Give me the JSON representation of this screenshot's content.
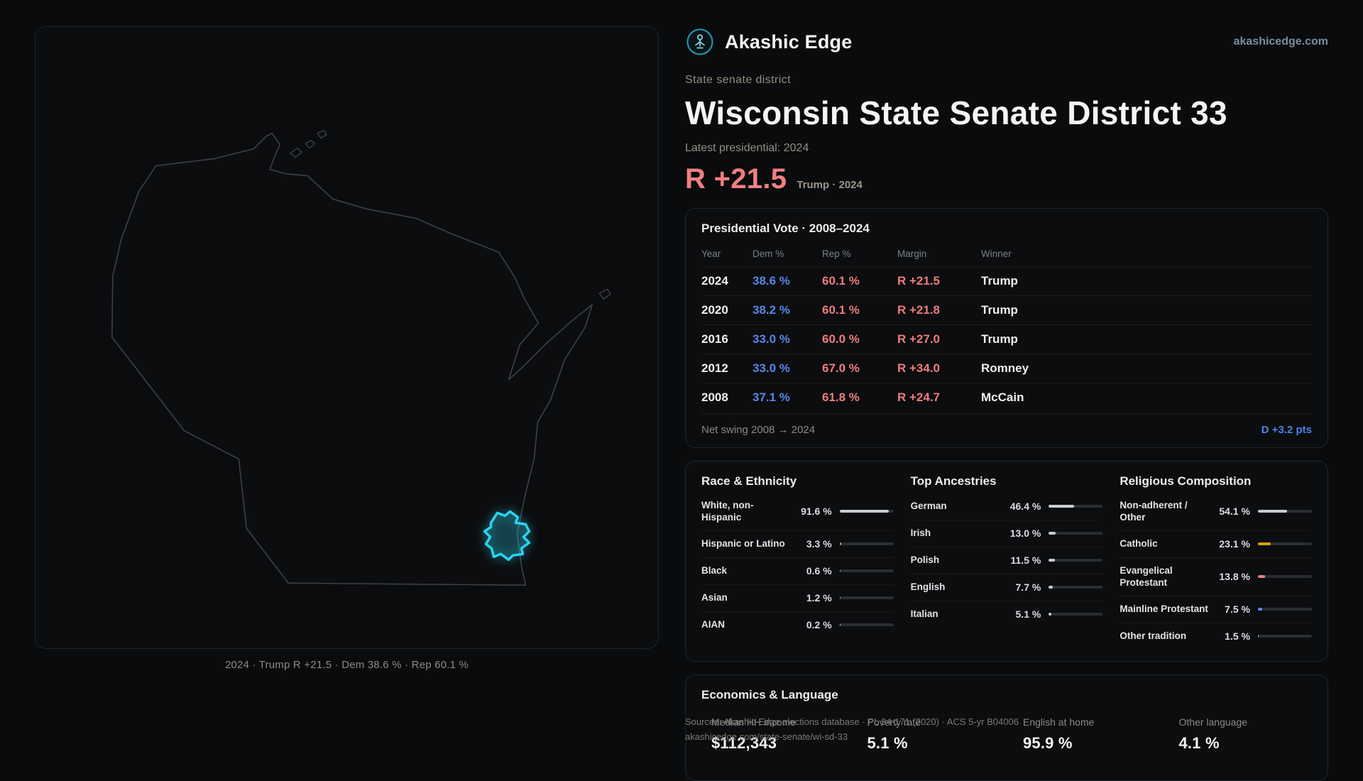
{
  "brand": {
    "name": "Akashic Edge",
    "domain": "akashicedge.com"
  },
  "page": {
    "kicker": "State senate district",
    "title": "Wisconsin State Senate District 33",
    "latest_label": "Latest presidential: 2024",
    "headline_margin": "R +21.5",
    "headline_context": "Trump · 2024"
  },
  "map": {
    "caption": "2024 · Trump R +21.5 · Dem 38.6 % · Rep 60.1 %",
    "district_color": "#2bd3ee",
    "district_fill": "rgba(43,211,238,0.16)",
    "outline_color": "#3c4046"
  },
  "colors": {
    "accent_cyan": "#2bd3ee",
    "dem_blue": "#5586e6",
    "rep_red": "#ee7c7c"
  },
  "presidential": {
    "title": "Presidential Vote · 2008–2024",
    "columns": [
      "Year",
      "Dem %",
      "Rep %",
      "Margin",
      "Winner"
    ],
    "rows": [
      {
        "year": "2024",
        "dem": "38.6 %",
        "rep": "60.1 %",
        "margin": "R +21.5",
        "winner": "Trump"
      },
      {
        "year": "2020",
        "dem": "38.2 %",
        "rep": "60.1 %",
        "margin": "R +21.8",
        "winner": "Trump"
      },
      {
        "year": "2016",
        "dem": "33.0 %",
        "rep": "60.0 %",
        "margin": "R +27.0",
        "winner": "Trump"
      },
      {
        "year": "2012",
        "dem": "33.0 %",
        "rep": "67.0 %",
        "margin": "R +34.0",
        "winner": "Romney"
      },
      {
        "year": "2008",
        "dem": "37.1 %",
        "rep": "61.8 %",
        "margin": "R +24.7",
        "winner": "McCain"
      }
    ],
    "net_swing_label": "Net swing 2008 → 2024",
    "net_swing_value": "D +3.2 pts"
  },
  "race": {
    "title": "Race & Ethnicity",
    "rows": [
      {
        "label": "White, non-Hispanic",
        "value": "91.6 %",
        "pct": 91.6,
        "color": "#c9cdd2"
      },
      {
        "label": "Hispanic or Latino",
        "value": "3.3 %",
        "pct": 3.3,
        "color": "#e8a33d"
      },
      {
        "label": "Black",
        "value": "0.6 %",
        "pct": 0.6,
        "color": "#8b95f6"
      },
      {
        "label": "Asian",
        "value": "1.2 %",
        "pct": 1.2,
        "color": "#53c08f"
      },
      {
        "label": "AIAN",
        "value": "0.2 %",
        "pct": 0.2,
        "color": "#c9cdd2"
      }
    ]
  },
  "ancestries": {
    "title": "Top Ancestries",
    "rows": [
      {
        "label": "German",
        "value": "46.4 %",
        "pct": 46.4,
        "color": "#c9cdd2"
      },
      {
        "label": "Irish",
        "value": "13.0 %",
        "pct": 13.0,
        "color": "#c9cdd2"
      },
      {
        "label": "Polish",
        "value": "11.5 %",
        "pct": 11.5,
        "color": "#c9cdd2"
      },
      {
        "label": "English",
        "value": "7.7 %",
        "pct": 7.7,
        "color": "#c9cdd2"
      },
      {
        "label": "Italian",
        "value": "5.1 %",
        "pct": 5.1,
        "color": "#c9cdd2"
      }
    ]
  },
  "religion": {
    "title": "Religious Composition",
    "rows": [
      {
        "label": "Non-adherent / Other",
        "value": "54.1 %",
        "pct": 54.1,
        "color": "#c9cdd2"
      },
      {
        "label": "Catholic",
        "value": "23.1 %",
        "pct": 23.1,
        "color": "#d4a017"
      },
      {
        "label": "Evangelical Protestant",
        "value": "13.8 %",
        "pct": 13.8,
        "color": "#e87f86"
      },
      {
        "label": "Mainline Protestant",
        "value": "7.5 %",
        "pct": 7.5,
        "color": "#5b8def"
      },
      {
        "label": "Other tradition",
        "value": "1.5 %",
        "pct": 1.5,
        "color": "#c9cdd2"
      }
    ]
  },
  "economics": {
    "title": "Economics & Language",
    "stats": [
      {
        "label": "Median HH income",
        "value": "$112,343"
      },
      {
        "label": "Poverty rate",
        "value": "5.1 %"
      },
      {
        "label": "English at home",
        "value": "95.9 %"
      },
      {
        "label": "Other language",
        "value": "4.1 %"
      }
    ]
  },
  "sources": {
    "line1": "Sources: Akashic Edge elections database · PL 94-171 (2020) · ACS 5-yr B04006",
    "line2": "akashicedge.com/state-senate/wi-sd-33"
  }
}
